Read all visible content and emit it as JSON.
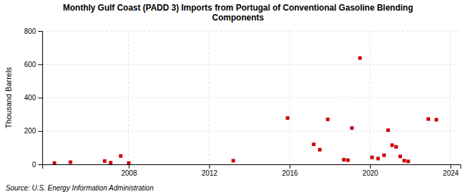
{
  "chart_data": {
    "type": "scatter",
    "title": "Monthly Gulf Coast (PADD 3) Imports from Portugal of Conventional Gasoline Blending\nComponents",
    "y_label": "Thousand Barrels",
    "source": "Source: U.S. Energy Information Administration",
    "x": [
      2004.3,
      2005.1,
      2006.8,
      2007.1,
      2007.6,
      2008.0,
      2013.2,
      2015.9,
      2017.2,
      2017.5,
      2017.9,
      2018.7,
      2018.9,
      2019.1,
      2019.5,
      2020.1,
      2020.4,
      2020.7,
      2020.9,
      2021.1,
      2021.3,
      2021.5,
      2021.7,
      2021.9,
      2022.9,
      2023.3
    ],
    "values": [
      8,
      13,
      20,
      10,
      50,
      8,
      22,
      278,
      120,
      88,
      270,
      28,
      25,
      218,
      638,
      42,
      35,
      55,
      205,
      115,
      105,
      48,
      22,
      18,
      272,
      268
    ],
    "color": "#cc0000",
    "marker": "square",
    "xlim": [
      2003.7,
      2024.5
    ],
    "xticks": [
      2008,
      2012,
      2016,
      2020,
      2024
    ],
    "ylim": [
      0,
      800
    ],
    "yticks": [
      0,
      200,
      400,
      600,
      800
    ],
    "grid": true
  }
}
